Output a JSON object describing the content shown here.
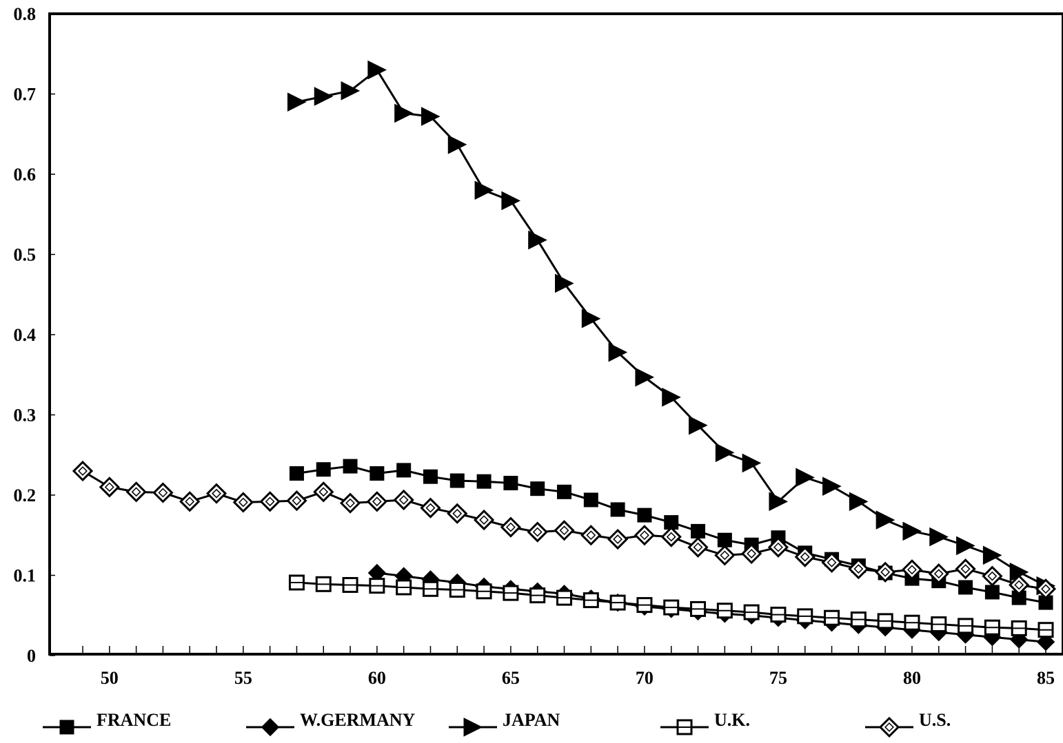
{
  "chart_data": {
    "type": "line",
    "title": "",
    "xlabel": "",
    "ylabel": "",
    "xlim": [
      48,
      85.5
    ],
    "ylim": [
      0,
      0.8
    ],
    "x_ticks": [
      50,
      55,
      60,
      65,
      70,
      75,
      80,
      85
    ],
    "x_tick_labels": [
      "50",
      "55",
      "60",
      "65",
      "70",
      "75",
      "80",
      "85"
    ],
    "y_ticks": [
      0,
      0.1,
      0.2,
      0.3,
      0.4,
      0.5,
      0.6,
      0.7,
      0.8
    ],
    "y_tick_labels": [
      "0",
      "0.1",
      "0.2",
      "0.3",
      "0.4",
      "0.5",
      "0.6",
      "0.7",
      "0.8"
    ],
    "grid": false,
    "legend_position": "bottom",
    "line_color": "#000000",
    "series": [
      {
        "name": "FRANCE",
        "marker": "filled-square",
        "x": [
          57,
          58,
          59,
          60,
          61,
          62,
          63,
          64,
          65,
          66,
          67,
          68,
          69,
          70,
          71,
          72,
          73,
          74,
          75,
          76,
          77,
          78,
          79,
          80,
          81,
          82,
          83,
          84,
          85
        ],
        "y": [
          0.227,
          0.232,
          0.236,
          0.227,
          0.231,
          0.223,
          0.218,
          0.217,
          0.215,
          0.208,
          0.204,
          0.194,
          0.182,
          0.175,
          0.166,
          0.155,
          0.144,
          0.138,
          0.147,
          0.128,
          0.12,
          0.112,
          0.103,
          0.096,
          0.093,
          0.085,
          0.079,
          0.072,
          0.066
        ]
      },
      {
        "name": "W.GERMANY",
        "marker": "filled-diamond",
        "x": [
          60,
          61,
          62,
          63,
          64,
          65,
          66,
          67,
          68,
          69,
          70,
          71,
          72,
          73,
          74,
          75,
          76,
          77,
          78,
          79,
          80,
          81,
          82,
          83,
          84,
          85
        ],
        "y": [
          0.103,
          0.099,
          0.095,
          0.091,
          0.086,
          0.083,
          0.08,
          0.077,
          0.071,
          0.066,
          0.061,
          0.058,
          0.055,
          0.052,
          0.05,
          0.047,
          0.044,
          0.041,
          0.038,
          0.035,
          0.032,
          0.029,
          0.026,
          0.023,
          0.02,
          0.017
        ]
      },
      {
        "name": "JAPAN",
        "marker": "filled-triangle-right",
        "x": [
          57,
          58,
          59,
          60,
          61,
          62,
          63,
          64,
          65,
          66,
          67,
          68,
          69,
          70,
          71,
          72,
          73,
          74,
          75,
          76,
          77,
          78,
          79,
          80,
          81,
          82,
          83,
          84,
          85
        ],
        "y": [
          0.69,
          0.697,
          0.704,
          0.73,
          0.676,
          0.672,
          0.637,
          0.58,
          0.567,
          0.518,
          0.464,
          0.42,
          0.378,
          0.347,
          0.322,
          0.287,
          0.253,
          0.24,
          0.192,
          0.222,
          0.211,
          0.192,
          0.169,
          0.155,
          0.148,
          0.137,
          0.125,
          0.104,
          0.087
        ]
      },
      {
        "name": "U.K.",
        "marker": "open-square",
        "x": [
          57,
          58,
          59,
          60,
          61,
          62,
          63,
          64,
          65,
          66,
          67,
          68,
          69,
          70,
          71,
          72,
          73,
          74,
          75,
          76,
          77,
          78,
          79,
          80,
          81,
          82,
          83,
          84,
          85
        ],
        "y": [
          0.091,
          0.089,
          0.088,
          0.087,
          0.085,
          0.083,
          0.082,
          0.08,
          0.078,
          0.075,
          0.072,
          0.069,
          0.066,
          0.063,
          0.06,
          0.058,
          0.056,
          0.054,
          0.051,
          0.049,
          0.047,
          0.045,
          0.043,
          0.041,
          0.039,
          0.037,
          0.035,
          0.034,
          0.032
        ]
      },
      {
        "name": "U.S.",
        "marker": "open-diamond",
        "x": [
          49,
          50,
          51,
          52,
          53,
          54,
          55,
          56,
          57,
          58,
          59,
          60,
          61,
          62,
          63,
          64,
          65,
          66,
          67,
          68,
          69,
          70,
          71,
          72,
          73,
          74,
          75,
          76,
          77,
          78,
          79,
          80,
          81,
          82,
          83,
          84,
          85
        ],
        "y": [
          0.23,
          0.21,
          0.204,
          0.203,
          0.192,
          0.202,
          0.191,
          0.192,
          0.193,
          0.204,
          0.19,
          0.192,
          0.194,
          0.184,
          0.177,
          0.169,
          0.16,
          0.154,
          0.156,
          0.15,
          0.145,
          0.15,
          0.148,
          0.135,
          0.125,
          0.127,
          0.135,
          0.123,
          0.116,
          0.108,
          0.104,
          0.107,
          0.102,
          0.108,
          0.099,
          0.088,
          0.083
        ]
      }
    ]
  }
}
